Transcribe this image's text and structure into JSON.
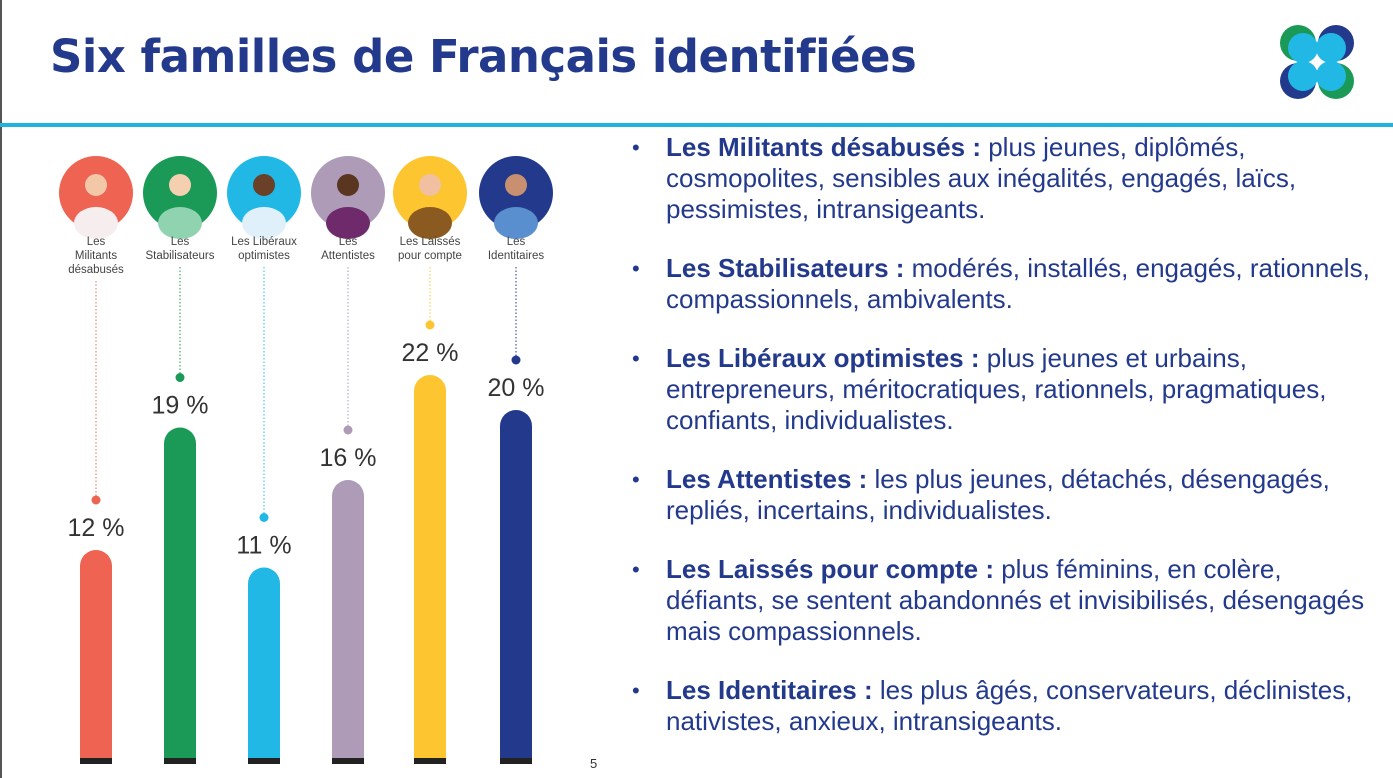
{
  "title": "Six familles de Français identifiées",
  "page_number": "5",
  "logo_colors": [
    "#1a9a56",
    "#233a8c",
    "#22b8e6"
  ],
  "chart_data": {
    "type": "bar",
    "categories": [
      "Les Militants désabusés",
      "Les Stabilisateurs",
      "Les Libéraux optimistes",
      "Les Attentistes",
      "Les Laissés pour compte",
      "Les Identitaires"
    ],
    "category_label_lines": [
      [
        "Les",
        "Militants",
        "désabusés"
      ],
      [
        "Les",
        "Stabilisateurs"
      ],
      [
        "Les Libéraux",
        "optimistes"
      ],
      [
        "Les",
        "Attentistes"
      ],
      [
        "Les Laissés",
        "pour compte"
      ],
      [
        "Les",
        "Identitaires"
      ]
    ],
    "values": [
      12,
      19,
      11,
      16,
      22,
      20
    ],
    "data_labels": [
      "12 %",
      "19 %",
      "11 %",
      "16 %",
      "22 %",
      "20 %"
    ],
    "colors": [
      "#ee6352",
      "#1a9a56",
      "#22b8e6",
      "#ad9bb8",
      "#fdc52f",
      "#233a8c"
    ],
    "unit": "%",
    "grid": false,
    "legend": "none"
  },
  "descriptions": [
    {
      "name": "Les Militants désabusés :",
      "text": " plus jeunes, diplômés, cosmopolites, sensibles aux inégalités, engagés, laïcs, pessimistes, intransigeants."
    },
    {
      "name": "Les Stabilisateurs :",
      "text": " modérés, installés, engagés, rationnels, compassionnels, ambivalents."
    },
    {
      "name": "Les Libéraux optimistes :",
      "text": " plus jeunes et urbains, entrepreneurs, méritocratiques, rationnels, pragmatiques, confiants, individualistes."
    },
    {
      "name": "Les Attentistes :",
      "text": " les plus jeunes, détachés, désengagés, repliés, incertains, individualistes."
    },
    {
      "name": "Les Laissés pour compte :",
      "text": " plus féminins, en colère, défiants, se sentent abandonnés et invisibilisés, désengagés mais compassionnels."
    },
    {
      "name": "Les Identitaires :",
      "text": " les plus âgés, conservateurs, déclinistes, nativistes, anxieux, intransigeants."
    }
  ]
}
